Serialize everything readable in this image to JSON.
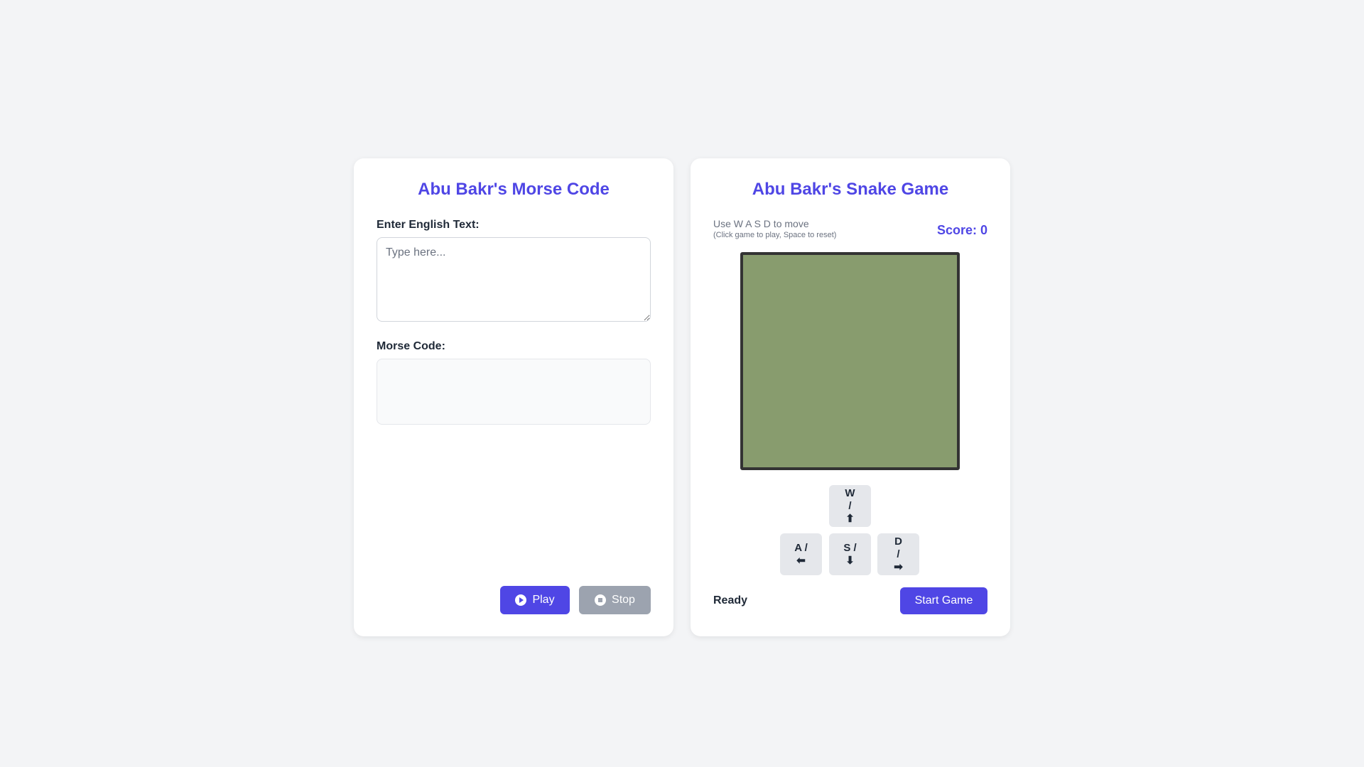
{
  "morse": {
    "title": "Abu Bakr's Morse Code",
    "input_label": "Enter English Text:",
    "input_placeholder": "Type here...",
    "input_value": "",
    "output_label": "Morse Code:",
    "output_value": "",
    "play_label": "Play",
    "stop_label": "Stop",
    "play_icon": "play-circle-icon",
    "stop_icon": "stop-circle-icon"
  },
  "snake": {
    "title": "Abu Bakr's Snake Game",
    "instructions": "Use W A S D to move",
    "sub_instructions": "(Click game to play, Space to reset)",
    "score": "Score: 0",
    "keys": {
      "up": "W\n/\n⬆",
      "left": "A /\n⬅",
      "down": "S /\n⬇",
      "right": "D\n/\n➡"
    },
    "status": "Ready",
    "start_label": "Start Game",
    "board_color": "#889c6e"
  },
  "colors": {
    "accent": "#4f46e5",
    "disabled": "#9ca3af",
    "background": "#f3f4f6"
  }
}
